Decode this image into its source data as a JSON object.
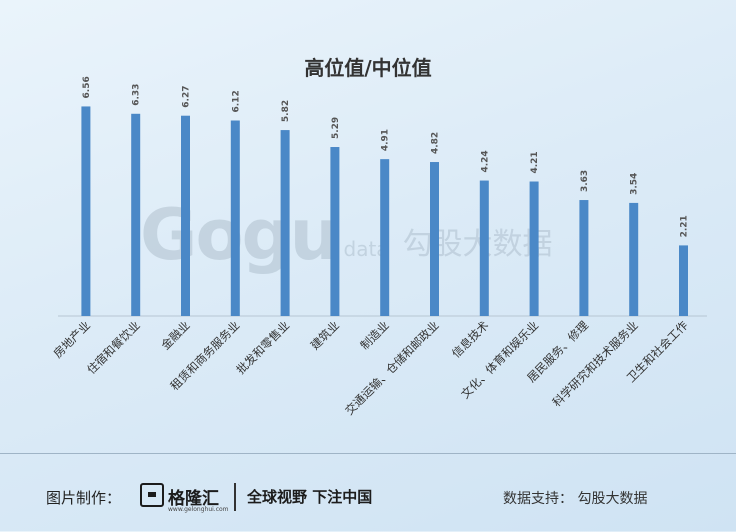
{
  "chart_data": {
    "type": "bar",
    "title": "高位值/中位值",
    "categories": [
      "房地产业",
      "住宿和餐饮业",
      "金融业",
      "租赁和商务服务业",
      "批发和零售业",
      "建筑业",
      "制造业",
      "交通运输、仓储和邮政业",
      "信息技术",
      "文化、体育和娱乐业",
      "居民服务、修理",
      "科学研究和技术服务业",
      "卫生和社会工作"
    ],
    "values": [
      6.56,
      6.33,
      6.27,
      6.12,
      5.82,
      5.29,
      4.91,
      4.82,
      4.24,
      4.21,
      3.63,
      3.54,
      2.21
    ],
    "value_labels": [
      "6.56",
      "6.33",
      "6.27",
      "6.12",
      "5.82",
      "5.29",
      "4.91",
      "4.82",
      "4.24",
      "4.21",
      "3.63",
      "3.54",
      "2.21"
    ],
    "ylim": [
      0,
      7.2
    ],
    "grid": false,
    "bar_color": "#4a88c7"
  },
  "watermark": {
    "logo": "Gogu",
    "data": "data",
    "cn": "勾股大数据"
  },
  "footer": {
    "label": "图片制作：",
    "brand_name": "格隆汇",
    "brand_url": "www.gelonghui.com",
    "slogan": "全球视野 下注中国",
    "source": "数据支持：  勾股大数据"
  }
}
